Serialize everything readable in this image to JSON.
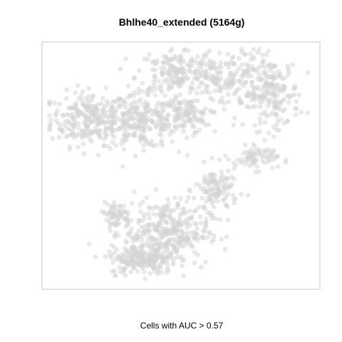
{
  "chart_data": {
    "type": "scatter",
    "title": "Bhlhe40_extended (5164g)",
    "subtitle": "Cells with AUC > 0.57",
    "xlabel": "",
    "ylabel": "",
    "grid": false,
    "axes_visible": false,
    "legend": "none",
    "point_color": "#d3d3d3",
    "point_opacity": 0.5,
    "highlighted_point_color": "",
    "clusters": [
      {
        "center": [
          -3.6,
          1.4
        ],
        "spread": [
          1.3,
          0.9
        ],
        "count": 260
      },
      {
        "center": [
          -1.5,
          1.3
        ],
        "spread": [
          1.3,
          0.9
        ],
        "count": 240
      },
      {
        "center": [
          0.2,
          1.5
        ],
        "spread": [
          0.8,
          0.6
        ],
        "count": 110
      },
      {
        "center": [
          -0.3,
          3.3
        ],
        "spread": [
          1.2,
          0.8
        ],
        "count": 150
      },
      {
        "center": [
          1.7,
          3.0
        ],
        "spread": [
          1.4,
          1.0
        ],
        "count": 200
      },
      {
        "center": [
          3.6,
          2.4
        ],
        "spread": [
          0.9,
          1.2
        ],
        "count": 190
      },
      {
        "center": [
          3.0,
          -0.2
        ],
        "spread": [
          0.7,
          0.4
        ],
        "count": 70
      },
      {
        "center": [
          1.4,
          -1.5
        ],
        "spread": [
          0.7,
          0.8
        ],
        "count": 120
      },
      {
        "center": [
          -0.6,
          -3.2
        ],
        "spread": [
          1.4,
          1.1
        ],
        "count": 360
      },
      {
        "center": [
          -1.6,
          -4.3
        ],
        "spread": [
          1.0,
          0.5
        ],
        "count": 180
      },
      {
        "center": [
          -2.6,
          -2.5
        ],
        "spread": [
          0.5,
          0.4
        ],
        "count": 60
      }
    ],
    "xlim": [
      -5.5,
      5.5
    ],
    "ylim": [
      -5.5,
      4.5
    ]
  }
}
